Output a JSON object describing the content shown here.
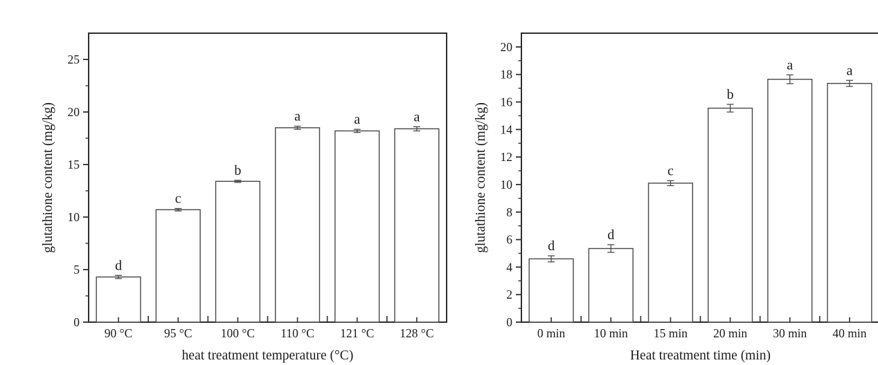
{
  "page": {
    "background": "#ffffff",
    "description": "Two-panel bar chart figure of glutathione content under heat treatment"
  },
  "colors": {
    "axis": "#2e2e2e",
    "bar_fill": "#ffffff",
    "bar_stroke": "#474747",
    "error_bar": "#4a4a4a",
    "text": "#1c1c1c"
  },
  "chart_data": [
    {
      "type": "bar",
      "title": "",
      "ylabel": "glutathione content (mg/kg)",
      "xlabel": "heat treatment temperature (°C)",
      "categories": [
        "90 °C",
        "95 °C",
        "100 °C",
        "110 °C",
        "121 °C",
        "128 °C"
      ],
      "values": [
        4.3,
        10.7,
        13.4,
        18.5,
        18.2,
        18.4
      ],
      "errors": [
        0.15,
        0.12,
        0.1,
        0.15,
        0.15,
        0.2
      ],
      "bar_labels": [
        "d",
        "c",
        "b",
        "a",
        "a",
        "a"
      ],
      "ylim": [
        0,
        27.5
      ],
      "ytick_major": 5,
      "ytick_minor": 2.5,
      "ytick_labels": [
        "0",
        "5",
        "10",
        "15",
        "20",
        "25"
      ],
      "grid": false,
      "legend": null
    },
    {
      "type": "bar",
      "title": "",
      "ylabel": "glutathione content (mg/kg)",
      "xlabel": "Heat treatment time (min)",
      "categories": [
        "0 min",
        "10 min",
        "15 min",
        "20 min",
        "30 min",
        "40 min"
      ],
      "values": [
        4.6,
        5.35,
        10.1,
        15.55,
        17.65,
        17.35
      ],
      "errors": [
        0.22,
        0.28,
        0.18,
        0.28,
        0.32,
        0.22
      ],
      "bar_labels": [
        "d",
        "d",
        "c",
        "b",
        "a",
        "a"
      ],
      "ylim": [
        0,
        21
      ],
      "ytick_major": 2,
      "ytick_minor": 1,
      "ytick_labels": [
        "0",
        "2",
        "4",
        "6",
        "8",
        "10",
        "12",
        "14",
        "16",
        "18",
        "20"
      ],
      "grid": false,
      "legend": null
    }
  ]
}
